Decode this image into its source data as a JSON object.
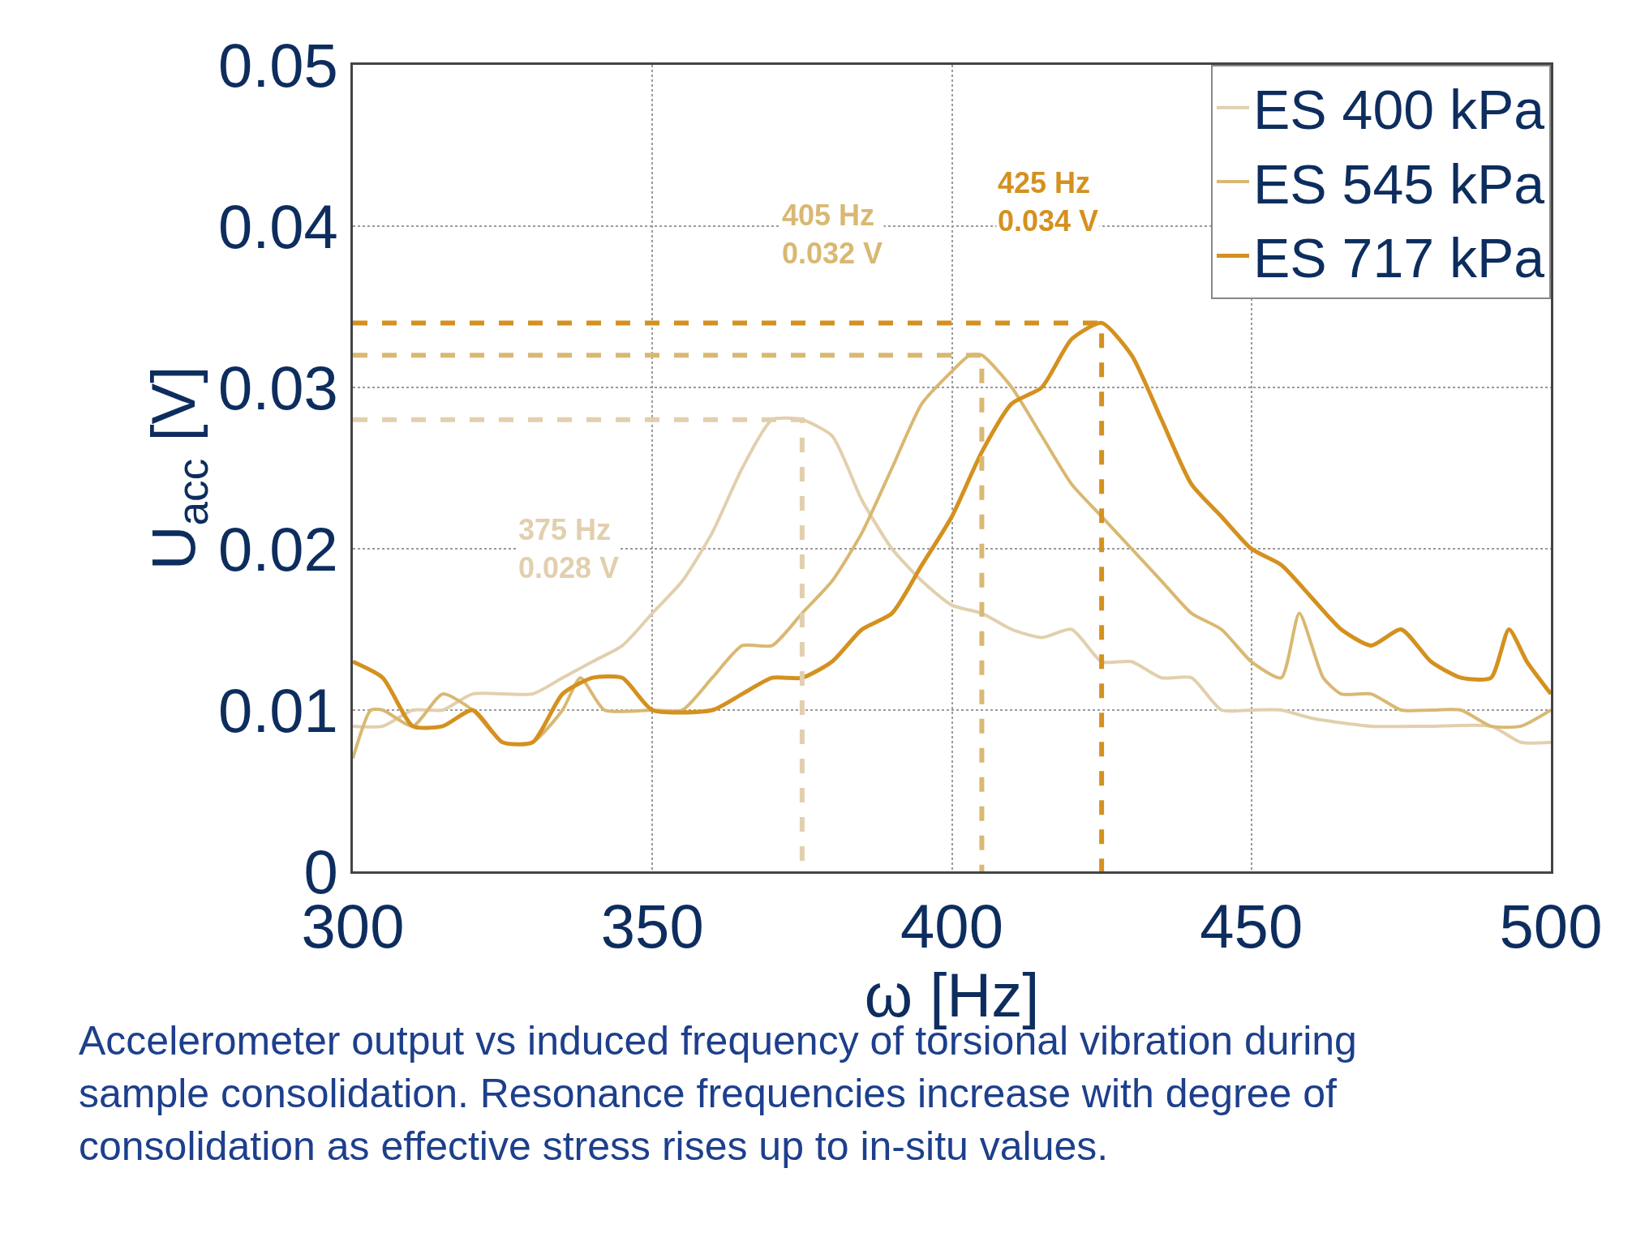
{
  "chart_data": {
    "type": "line",
    "xlabel": "ω [Hz]",
    "ylabel": "U$_{acc}$ [V]",
    "xlim": [
      300,
      500
    ],
    "xticks": [
      300,
      350,
      400,
      450,
      500
    ],
    "ylim": [
      0,
      0.05
    ],
    "yticks": [
      0,
      0.01,
      0.02,
      0.03,
      0.04,
      0.05
    ],
    "grid": true,
    "legend": "top right",
    "line_style": "solid",
    "marker": "none",
    "series": [
      {
        "name": "ES 400 kPa",
        "color": "#e2cfae",
        "x": [
          300,
          305,
          310,
          315,
          320,
          330,
          335,
          340,
          345,
          350,
          355,
          360,
          365,
          370,
          375,
          380,
          385,
          390,
          395,
          400,
          405,
          410,
          415,
          420,
          425,
          430,
          435,
          440,
          445,
          450,
          455,
          460,
          470,
          480,
          490,
          495,
          500
        ],
        "values": [
          0.009,
          0.009,
          0.01,
          0.01,
          0.011,
          0.011,
          0.012,
          0.013,
          0.014,
          0.016,
          0.018,
          0.021,
          0.025,
          0.028,
          0.028,
          0.027,
          0.023,
          0.02,
          0.018,
          0.0165,
          0.016,
          0.015,
          0.0145,
          0.015,
          0.013,
          0.013,
          0.012,
          0.012,
          0.01,
          0.01,
          0.01,
          0.0095,
          0.009,
          0.009,
          0.009,
          0.008,
          0.008
        ]
      },
      {
        "name": "ES 545 kPa",
        "color": "#d9b872",
        "x": [
          300,
          303,
          305,
          310,
          315,
          320,
          325,
          330,
          335,
          338,
          342,
          350,
          355,
          360,
          365,
          370,
          375,
          380,
          385,
          390,
          395,
          400,
          403,
          405,
          410,
          415,
          420,
          425,
          430,
          435,
          440,
          445,
          450,
          455,
          458,
          462,
          465,
          470,
          475,
          480,
          485,
          490,
          495,
          500
        ],
        "values": [
          0.007,
          0.01,
          0.01,
          0.009,
          0.011,
          0.01,
          0.008,
          0.008,
          0.01,
          0.012,
          0.01,
          0.01,
          0.01,
          0.012,
          0.014,
          0.014,
          0.016,
          0.018,
          0.021,
          0.025,
          0.029,
          0.031,
          0.032,
          0.032,
          0.03,
          0.027,
          0.024,
          0.022,
          0.02,
          0.018,
          0.016,
          0.015,
          0.013,
          0.012,
          0.016,
          0.012,
          0.011,
          0.011,
          0.01,
          0.01,
          0.01,
          0.009,
          0.009,
          0.01
        ]
      },
      {
        "name": "ES 717 kPa",
        "color": "#d4911f",
        "x": [
          300,
          305,
          310,
          315,
          320,
          325,
          330,
          335,
          340,
          345,
          350,
          360,
          365,
          370,
          375,
          380,
          385,
          390,
          395,
          400,
          405,
          410,
          415,
          420,
          425,
          430,
          435,
          440,
          445,
          450,
          455,
          460,
          465,
          470,
          475,
          480,
          485,
          490,
          493,
          496,
          500
        ],
        "values": [
          0.013,
          0.012,
          0.009,
          0.009,
          0.01,
          0.008,
          0.008,
          0.011,
          0.012,
          0.012,
          0.01,
          0.01,
          0.011,
          0.012,
          0.012,
          0.013,
          0.015,
          0.016,
          0.019,
          0.022,
          0.026,
          0.029,
          0.03,
          0.033,
          0.034,
          0.032,
          0.028,
          0.024,
          0.022,
          0.02,
          0.019,
          0.017,
          0.015,
          0.014,
          0.015,
          0.013,
          0.012,
          0.012,
          0.015,
          0.013,
          0.011
        ]
      },
      {
        "color": "#e2cfae",
        "line_style": "dashed",
        "x": [
          300,
          375,
          375
        ],
        "values": [
          0.028,
          0.028,
          0
        ]
      },
      {
        "color": "#d9b872",
        "line_style": "dashed",
        "x": [
          300,
          405,
          405
        ],
        "values": [
          0.032,
          0.032,
          0
        ]
      },
      {
        "color": "#d4911f",
        "line_style": "dashed",
        "x": [
          300,
          425,
          425
        ],
        "values": [
          0.034,
          0.034,
          0
        ]
      }
    ],
    "annotations": [
      "375 Hz\n0.028 V",
      "405 Hz\n0.032 V",
      "425 Hz\n0.034 V",
      "Accelerometer output vs induced frequency of torsional vibration during sample consolidation. Resonance frequencies increase with degree of consolidation as effective stress rises up to in-situ values."
    ]
  }
}
